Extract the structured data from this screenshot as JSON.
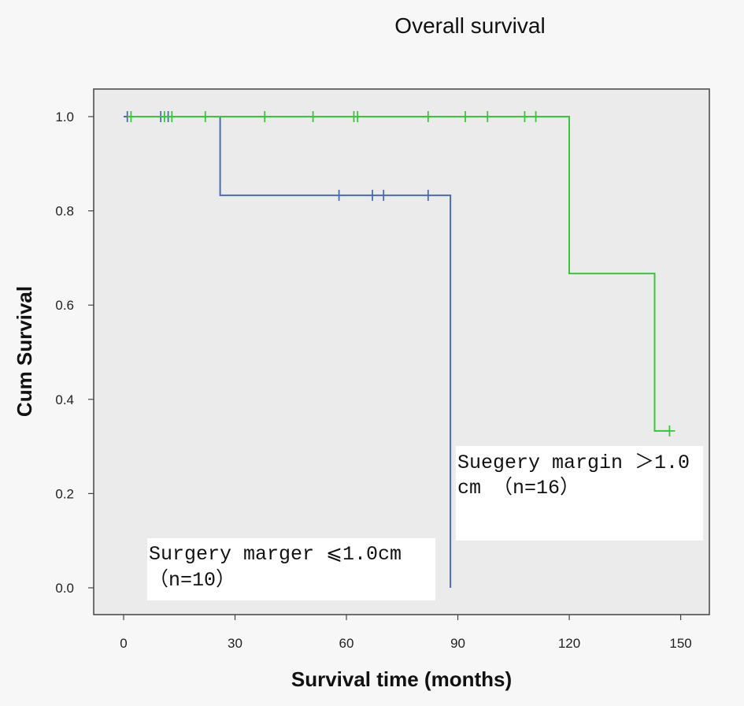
{
  "chart_data": {
    "type": "line",
    "subtype": "kaplan-meier-step",
    "title": "Overall survival",
    "xlabel": "Survival time (months)",
    "ylabel": "Cum Survival",
    "xlim": [
      0,
      150
    ],
    "ylim": [
      0.0,
      1.0
    ],
    "xticks": [
      0,
      30,
      60,
      90,
      120,
      150
    ],
    "yticks": [
      0.0,
      0.2,
      0.4,
      0.6,
      0.8,
      1.0
    ],
    "xtick_labels": [
      "0",
      "30",
      "60",
      "90",
      "120",
      "150"
    ],
    "ytick_labels": [
      "0.0",
      "0.2",
      "0.4",
      "0.6",
      "0.8",
      "1.0"
    ],
    "grid": false,
    "series": [
      {
        "name": "Surgery marger ≤1.0cm (n=10)",
        "color": "#4a6bb5",
        "step_x": [
          0,
          26,
          26,
          88,
          88
        ],
        "step_y": [
          1.0,
          1.0,
          0.833,
          0.833,
          0.0
        ],
        "censored": [
          {
            "x": 1,
            "y": 1.0
          },
          {
            "x": 10,
            "y": 1.0
          },
          {
            "x": 12,
            "y": 1.0
          },
          {
            "x": 58,
            "y": 0.833
          },
          {
            "x": 67,
            "y": 0.833
          },
          {
            "x": 70,
            "y": 0.833
          },
          {
            "x": 82,
            "y": 0.833
          }
        ]
      },
      {
        "name": "Suegery margin >1.0 cm (n=16)",
        "color": "#3cc43c",
        "step_x": [
          1,
          120,
          120,
          143,
          143,
          147
        ],
        "step_y": [
          1.0,
          1.0,
          0.667,
          0.667,
          0.333,
          0.333
        ],
        "censored": [
          {
            "x": 2,
            "y": 1.0
          },
          {
            "x": 11,
            "y": 1.0
          },
          {
            "x": 13,
            "y": 1.0
          },
          {
            "x": 22,
            "y": 1.0
          },
          {
            "x": 38,
            "y": 1.0
          },
          {
            "x": 51,
            "y": 1.0
          },
          {
            "x": 62,
            "y": 1.0
          },
          {
            "x": 63,
            "y": 1.0
          },
          {
            "x": 82,
            "y": 1.0
          },
          {
            "x": 92,
            "y": 1.0
          },
          {
            "x": 98,
            "y": 1.0
          },
          {
            "x": 108,
            "y": 1.0
          },
          {
            "x": 111,
            "y": 1.0
          },
          {
            "x": 147,
            "y": 0.333
          }
        ]
      }
    ],
    "annotations": [
      {
        "id": "green",
        "lines": [
          "Suegery margin ＞1.0",
          "cm （n=16）"
        ]
      },
      {
        "id": "blue",
        "lines": [
          "Surgery marger ⩽1.0cm",
          "（n=10）"
        ]
      }
    ]
  }
}
